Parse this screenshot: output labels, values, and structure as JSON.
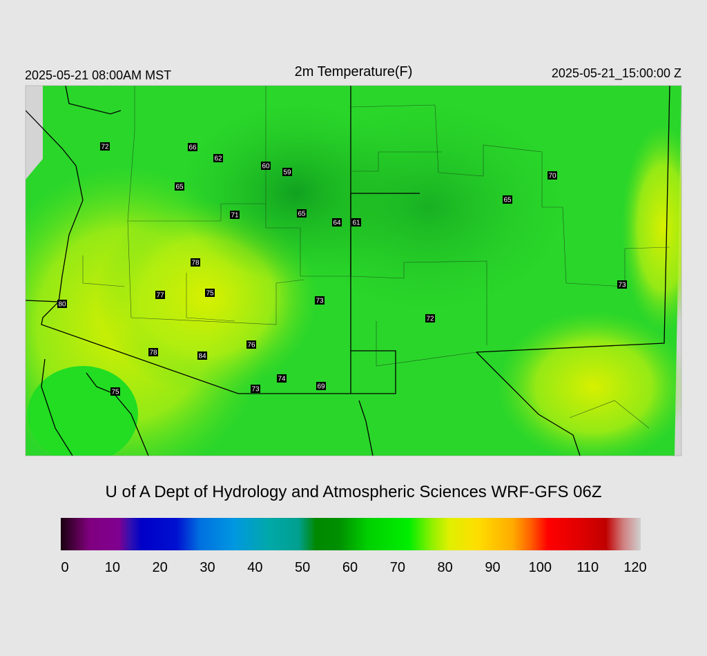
{
  "header": {
    "local_time": "2025-05-21 08:00AM MST",
    "title": "2m Temperature(F)",
    "valid_time": "2025-05-21_15:00:00 Z"
  },
  "stations": [
    "72",
    "66",
    "62",
    "60",
    "59",
    "65",
    "71",
    "65",
    "64",
    "61",
    "70",
    "65",
    "78",
    "77",
    "75",
    "73",
    "80",
    "73",
    "72",
    "78",
    "84",
    "76",
    "74",
    "69",
    "73",
    "75"
  ],
  "credit": "U of A Dept of Hydrology and Atmospheric Sciences WRF-GFS 06Z",
  "colorbar": {
    "lim": [
      0,
      120
    ],
    "ticks": [
      0,
      10,
      20,
      30,
      40,
      50,
      60,
      70,
      80,
      90,
      100,
      110,
      120
    ]
  }
}
